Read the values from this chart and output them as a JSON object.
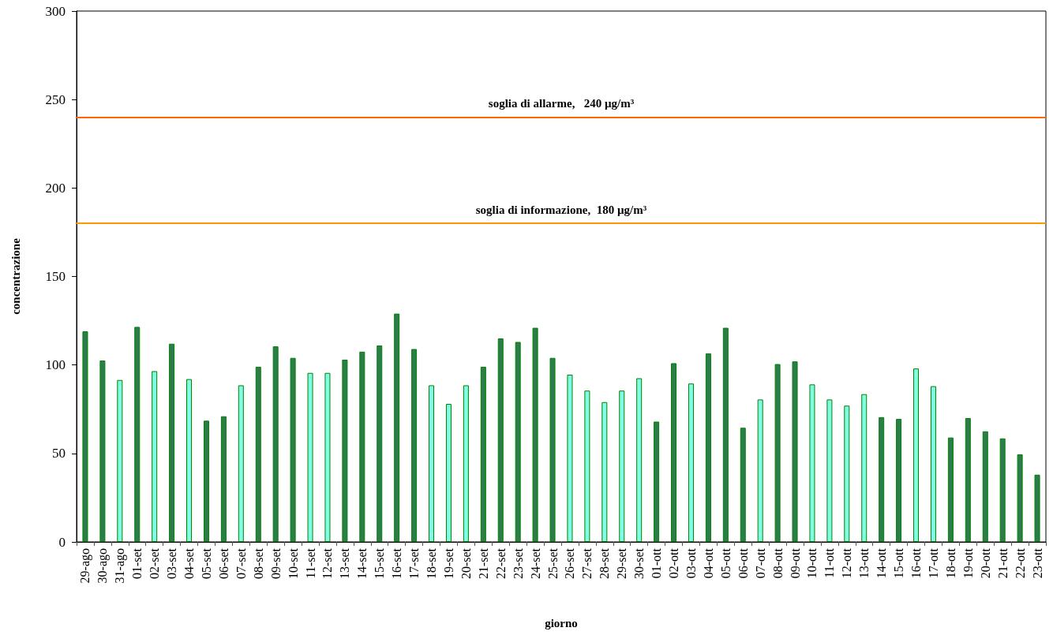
{
  "chart_data": {
    "type": "bar",
    "xlabel": "giorno",
    "ylabel": "concentrazione",
    "categories": [
      "29-ago",
      "30-ago",
      "31-ago",
      "01-set",
      "02-set",
      "03-set",
      "04-set",
      "05-set",
      "06-set",
      "07-set",
      "08-set",
      "09-set",
      "10-set",
      "11-set",
      "12-set",
      "13-set",
      "14-set",
      "15-set",
      "16-set",
      "17-set",
      "18-set",
      "19-set",
      "20-set",
      "21-set",
      "22-set",
      "23-set",
      "24-set",
      "25-set",
      "26-set",
      "27-set",
      "28-set",
      "29-set",
      "30-set",
      "01-ott",
      "02-ott",
      "03-ott",
      "04-ott",
      "05-ott",
      "06-ott",
      "07-ott",
      "08-ott",
      "09-ott",
      "10-ott",
      "11-ott",
      "12-ott",
      "13-ott",
      "14-ott",
      "15-ott",
      "16-ott",
      "17-ott",
      "18-ott",
      "19-ott",
      "20-ott",
      "21-ott",
      "22-ott",
      "23-ott"
    ],
    "values": [
      119,
      102.5,
      91.5,
      121.5,
      96.5,
      112,
      92,
      68.5,
      71,
      88.5,
      99,
      110.5,
      104,
      95.5,
      95.5,
      103,
      107.5,
      111,
      129,
      109,
      88.5,
      78,
      88.5,
      99,
      115,
      113,
      121,
      104,
      94.5,
      85.5,
      79,
      85.5,
      92.5,
      68,
      101,
      89.5,
      106.5,
      121,
      64.5,
      80.5,
      100.5,
      102,
      89,
      80.5,
      77,
      83.5,
      70.5,
      69.5,
      98,
      88,
      59,
      70,
      62.5,
      58.5,
      49.5,
      38
    ],
    "colors": [
      "#2b7d4b",
      "#2b7d4b",
      "#80ffe4",
      "#2b7d4b",
      "#80ffe4",
      "#2b7d4b",
      "#80ffe4",
      "#2b7d4b",
      "#2b7d4b",
      "#80ffe4",
      "#2b7d4b",
      "#2b7d4b",
      "#2b7d4b",
      "#80ffe4",
      "#80ffe4",
      "#2b7d4b",
      "#2b7d4b",
      "#2b7d4b",
      "#2b7d4b",
      "#2b7d4b",
      "#80ffe4",
      "#80ffe4",
      "#80ffe4",
      "#2b7d4b",
      "#2b7d4b",
      "#2b7d4b",
      "#2b7d4b",
      "#2b7d4b",
      "#80ffe4",
      "#80ffe4",
      "#80ffe4",
      "#80ffe4",
      "#80ffe4",
      "#2b7d4b",
      "#2b7d4b",
      "#80ffe4",
      "#2b7d4b",
      "#2b7d4b",
      "#2b7d4b",
      "#80ffe4",
      "#2b7d4b",
      "#2b7d4b",
      "#80ffe4",
      "#80ffe4",
      "#80ffe4",
      "#80ffe4",
      "#2b7d4b",
      "#2b7d4b",
      "#80ffe4",
      "#80ffe4",
      "#2b7d4b",
      "#2b7d4b",
      "#2b7d4b",
      "#2b7d4b",
      "#2b7d4b",
      "#2b7d4b"
    ],
    "ylim": [
      0,
      300
    ],
    "yticks": [
      0,
      50,
      100,
      150,
      200,
      250,
      300
    ],
    "grid": false,
    "ref_lines": [
      {
        "axis": "y",
        "value": 240,
        "label": "soglia di allarme,   240 µg/m³",
        "color": "#ff6600"
      },
      {
        "axis": "y",
        "value": 180,
        "label": "soglia di informazione,  180 µg/m³",
        "color": "#ff9900"
      }
    ]
  }
}
